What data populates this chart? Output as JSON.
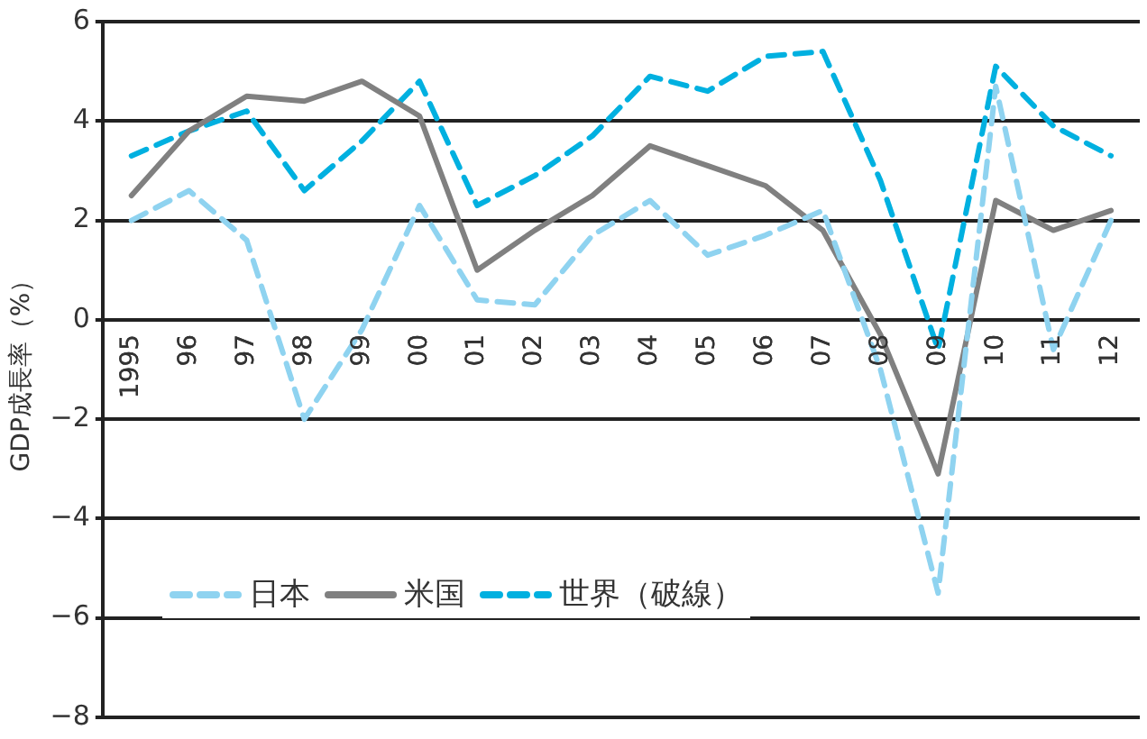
{
  "chart_data": {
    "type": "line",
    "ylabel": "GDP成長率（%）",
    "categories": [
      "1995",
      "96",
      "97",
      "98",
      "99",
      "00",
      "01",
      "02",
      "03",
      "04",
      "05",
      "06",
      "07",
      "08",
      "09",
      "10",
      "11",
      "12"
    ],
    "series": [
      {
        "name": "日本",
        "color": "#8fd3f0",
        "line_style": "dashed",
        "values": [
          2.0,
          2.6,
          1.6,
          -2.0,
          -0.2,
          2.3,
          0.4,
          0.3,
          1.7,
          2.4,
          1.3,
          1.7,
          2.2,
          -1.0,
          -5.5,
          4.7,
          -0.6,
          2.0
        ]
      },
      {
        "name": "米国",
        "color": "#808080",
        "line_style": "solid",
        "values": [
          2.5,
          3.8,
          4.5,
          4.4,
          4.8,
          4.1,
          1.0,
          1.8,
          2.5,
          3.5,
          3.1,
          2.7,
          1.8,
          -0.3,
          -3.1,
          2.4,
          1.8,
          2.2
        ]
      },
      {
        "name": "世界（破線）",
        "color": "#00b0e0",
        "line_style": "dashed",
        "values": [
          3.3,
          3.8,
          4.2,
          2.6,
          3.6,
          4.8,
          2.3,
          2.9,
          3.7,
          4.9,
          4.6,
          5.3,
          5.4,
          2.8,
          -0.6,
          5.1,
          3.9,
          3.3
        ]
      }
    ],
    "ylim": [
      -8,
      6
    ],
    "yticks": [
      -8,
      -6,
      -4,
      -2,
      0,
      2,
      4,
      6
    ],
    "grid": "y",
    "legend": "bottom left",
    "marker": "none"
  }
}
